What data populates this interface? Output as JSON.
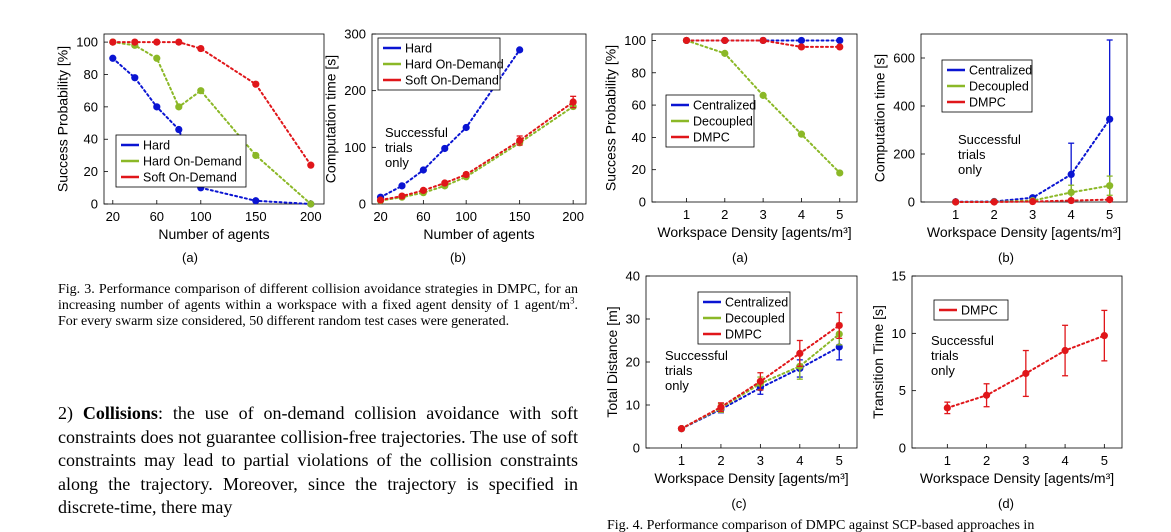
{
  "fig3": {
    "caption_lines": [
      "Fig. 3.  Performance comparison of different collision avoidance strategies in",
      "DMPC, for an increasing number of agents within a workspace with a fixed",
      "agent density of 1 agent/m",
      ". For every swarm size considered, 50 different",
      "random test cases were generated."
    ],
    "caption_superscript": "3"
  },
  "body": {
    "heading_num": "2)",
    "heading_bold": "Collisions",
    "lines": [
      ": the use of on-demand collision avoidance with",
      "soft constraints does not guarantee collision-free trajectories.",
      "The use of soft constraints may lead to partial violations",
      "of the collision constraints along the trajectory. Moreover,",
      "since the trajectory is specified in discrete-time, there may"
    ]
  },
  "fig4_caption_partial": "Fig. 4.  Performance comparison of DMPC against SCP-based approaches in",
  "chart_data": [
    {
      "id": "fig3a",
      "panel": "(a)",
      "type": "line",
      "xlabel": "Number of agents",
      "ylabel": "Success Probability [%]",
      "xlim": [
        12,
        212
      ],
      "ylim": [
        0,
        105
      ],
      "xticks": [
        20,
        60,
        100,
        150,
        200
      ],
      "xticklabels": [
        "20",
        "60",
        "100",
        "150",
        "200"
      ],
      "yticks": [
        0,
        20,
        40,
        60,
        80,
        100
      ],
      "yticklabels": [
        "0",
        "20",
        "40",
        "60",
        "80",
        "100"
      ],
      "legend": "bottom-left",
      "annotation": [],
      "series": [
        {
          "name": "Hard",
          "color": "#0a14d2",
          "x": [
            20,
            40,
            60,
            80,
            100,
            150,
            200
          ],
          "y": [
            90,
            78,
            60,
            46,
            10,
            2,
            0
          ]
        },
        {
          "name": "Hard On-Demand",
          "color": "#8bb827",
          "x": [
            20,
            40,
            60,
            80,
            100,
            150,
            200
          ],
          "y": [
            100,
            98,
            90,
            60,
            70,
            30,
            0
          ]
        },
        {
          "name": "Soft On-Demand",
          "color": "#e0161a",
          "x": [
            20,
            40,
            60,
            80,
            100,
            150,
            200
          ],
          "y": [
            100,
            100,
            100,
            100,
            96,
            74,
            24
          ]
        }
      ]
    },
    {
      "id": "fig3b",
      "panel": "(b)",
      "type": "line",
      "xlabel": "Number of agents",
      "ylabel": "Computation time [s]",
      "xlim": [
        12,
        212
      ],
      "ylim": [
        0,
        300
      ],
      "xticks": [
        20,
        60,
        100,
        150,
        200
      ],
      "xticklabels": [
        "20",
        "60",
        "100",
        "150",
        "200"
      ],
      "yticks": [
        0,
        100,
        200,
        300
      ],
      "yticklabels": [
        "0",
        "100",
        "200",
        "300"
      ],
      "legend": "top-left",
      "annotation": [
        "Successful",
        "trials",
        "only"
      ],
      "series": [
        {
          "name": "Hard",
          "color": "#0a14d2",
          "x": [
            20,
            40,
            60,
            80,
            100,
            150
          ],
          "y": [
            12,
            32,
            60,
            98,
            135,
            272
          ]
        },
        {
          "name": "Hard On-Demand",
          "color": "#8bb827",
          "x": [
            20,
            40,
            60,
            80,
            100,
            150,
            200
          ],
          "y": [
            6,
            12,
            20,
            32,
            48,
            108,
            172
          ]
        },
        {
          "name": "Soft On-Demand",
          "color": "#e0161a",
          "x": [
            20,
            40,
            60,
            80,
            100,
            150,
            200
          ],
          "y": [
            7,
            14,
            24,
            37,
            52,
            112,
            180
          ],
          "err": [
            0,
            0,
            0,
            2,
            3,
            8,
            10
          ]
        }
      ]
    },
    {
      "id": "fig4a",
      "panel": "(a)",
      "type": "line",
      "xlabel": "Workspace Density [agents/m³]",
      "ylabel": "Success Probability [%]",
      "xlim": [
        0.1,
        5.45
      ],
      "ylim": [
        0,
        104
      ],
      "xticks": [
        1,
        2,
        3,
        4,
        5
      ],
      "xticklabels": [
        "1",
        "2",
        "3",
        "4",
        "5"
      ],
      "yticks": [
        0,
        20,
        40,
        60,
        80,
        100
      ],
      "yticklabels": [
        "0",
        "20",
        "40",
        "60",
        "80",
        "100"
      ],
      "legend": "bottom-left",
      "annotation": [],
      "series": [
        {
          "name": "Centralized",
          "color": "#0a14d2",
          "x": [
            1,
            2,
            3,
            4,
            5
          ],
          "y": [
            100,
            100,
            100,
            100,
            100
          ]
        },
        {
          "name": "Decoupled",
          "color": "#8bb827",
          "x": [
            1,
            2,
            3,
            4,
            5
          ],
          "y": [
            100,
            92,
            66,
            42,
            18
          ]
        },
        {
          "name": "DMPC",
          "color": "#e0161a",
          "x": [
            1,
            2,
            3,
            4,
            5
          ],
          "y": [
            100,
            100,
            100,
            96,
            96
          ]
        }
      ]
    },
    {
      "id": "fig4b",
      "panel": "(b)",
      "type": "line",
      "xlabel": "Workspace Density [agents/m³]",
      "ylabel": "Computation time [s]",
      "xlim": [
        0.1,
        5.45
      ],
      "ylim": [
        0,
        700
      ],
      "xticks": [
        1,
        2,
        3,
        4,
        5
      ],
      "xticklabels": [
        "1",
        "2",
        "3",
        "4",
        "5"
      ],
      "yticks": [
        0,
        200,
        400,
        600
      ],
      "yticklabels": [
        "0",
        "200",
        "400",
        "600"
      ],
      "legend": "top-left",
      "annotation": [
        "Successful",
        "trials",
        "only"
      ],
      "series": [
        {
          "name": "Centralized",
          "color": "#0a14d2",
          "x": [
            1,
            2,
            3,
            4,
            5
          ],
          "y": [
            1,
            2,
            18,
            115,
            345
          ],
          "err": [
            0,
            0,
            4,
            130,
            330
          ]
        },
        {
          "name": "Decoupled",
          "color": "#8bb827",
          "x": [
            1,
            2,
            3,
            4,
            5
          ],
          "y": [
            0,
            1,
            6,
            40,
            68
          ],
          "err": [
            0,
            0,
            2,
            30,
            40
          ]
        },
        {
          "name": "DMPC",
          "color": "#e0161a",
          "x": [
            1,
            2,
            3,
            4,
            5
          ],
          "y": [
            0,
            0,
            2,
            6,
            10
          ],
          "err": [
            0,
            0,
            1,
            3,
            4
          ]
        }
      ]
    },
    {
      "id": "fig4c",
      "panel": "(c)",
      "type": "line",
      "xlabel": "Workspace Density [agents/m³]",
      "ylabel": "Total Distance [m]",
      "xlim": [
        0.1,
        5.45
      ],
      "ylim": [
        0,
        40
      ],
      "xticks": [
        1,
        2,
        3,
        4,
        5
      ],
      "xticklabels": [
        "1",
        "2",
        "3",
        "4",
        "5"
      ],
      "yticks": [
        0,
        10,
        20,
        30,
        40
      ],
      "yticklabels": [
        "0",
        "10",
        "20",
        "30",
        "40"
      ],
      "legend": "top-right",
      "annotation": [
        "Successful",
        "trials",
        "only"
      ],
      "series": [
        {
          "name": "Centralized",
          "color": "#0a14d2",
          "x": [
            1,
            2,
            3,
            4,
            5
          ],
          "y": [
            4.5,
            9,
            14,
            18.5,
            23.5
          ],
          "err": [
            0.3,
            0.8,
            1.5,
            2,
            3
          ]
        },
        {
          "name": "Decoupled",
          "color": "#8bb827",
          "x": [
            1,
            2,
            3,
            4,
            5
          ],
          "y": [
            4.5,
            9.3,
            15,
            19,
            26.5
          ],
          "err": [
            0.3,
            1,
            1.5,
            3,
            2.5
          ]
        },
        {
          "name": "DMPC",
          "color": "#e0161a",
          "x": [
            1,
            2,
            3,
            4,
            5
          ],
          "y": [
            4.5,
            9.5,
            15.5,
            22,
            28.5
          ],
          "err": [
            0.4,
            1,
            2,
            3,
            3
          ]
        }
      ]
    },
    {
      "id": "fig4d",
      "panel": "(d)",
      "type": "line",
      "xlabel": "Workspace Density [agents/m³]",
      "ylabel": "Transition Time [s]",
      "xlim": [
        0.1,
        5.45
      ],
      "ylim": [
        0,
        15
      ],
      "xticks": [
        1,
        2,
        3,
        4,
        5
      ],
      "xticklabels": [
        "1",
        "2",
        "3",
        "4",
        "5"
      ],
      "yticks": [
        0,
        5,
        10,
        15
      ],
      "yticklabels": [
        "0",
        "5",
        "10",
        "15"
      ],
      "legend": "top-left",
      "annotation": [
        "Successful",
        "trials",
        "only"
      ],
      "series": [
        {
          "name": "DMPC",
          "color": "#e0161a",
          "x": [
            1,
            2,
            3,
            4,
            5
          ],
          "y": [
            3.5,
            4.6,
            6.5,
            8.5,
            9.8
          ],
          "err": [
            0.5,
            1,
            2,
            2.2,
            2.2
          ]
        }
      ]
    }
  ]
}
